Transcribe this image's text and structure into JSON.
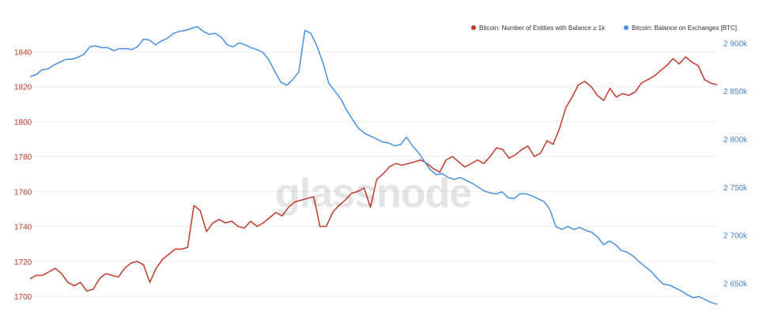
{
  "chart_data": {
    "type": "line",
    "watermark": "glassnode",
    "legend": [
      {
        "name": "Bitcoin: Number of Entities with Balance ≥ 1k",
        "color": "#c0392b"
      },
      {
        "name": "Bitcoin: Balance on Exchanges [BTC]",
        "color": "#4a90e2"
      }
    ],
    "legend_position": "top-right",
    "grid": true,
    "left_axis": {
      "ticks": [
        "1840",
        "1820",
        "1800",
        "1780",
        "1760",
        "1740",
        "1720",
        "1700"
      ],
      "tick_values": [
        1840,
        1820,
        1800,
        1780,
        1760,
        1740,
        1720,
        1700
      ],
      "range": [
        1691,
        1856
      ]
    },
    "right_axis": {
      "ticks": [
        "2 900k",
        "2 850k",
        "2 800k",
        "2 750k",
        "2 700k",
        "2 650k"
      ],
      "tick_values": [
        2900,
        2850,
        2800,
        2750,
        2700,
        2650
      ],
      "unit": "thousand BTC",
      "range": [
        2620,
        2920
      ]
    },
    "series": [
      {
        "name": "Bitcoin: Number of Entities with Balance ≥ 1k",
        "axis": "left",
        "color": "#c0392b",
        "values": [
          1710,
          1712,
          1712,
          1714,
          1716,
          1713,
          1708,
          1706,
          1708,
          1703,
          1704,
          1710,
          1713,
          1712,
          1711,
          1716,
          1719,
          1720,
          1718,
          1708,
          1716,
          1721,
          1724,
          1727,
          1727,
          1728,
          1752,
          1749,
          1737,
          1742,
          1744,
          1742,
          1743,
          1740,
          1739,
          1743,
          1740,
          1742,
          1745,
          1748,
          1746,
          1751,
          1754,
          1755,
          1756,
          1757,
          1740,
          1740,
          1748,
          1752,
          1755,
          1759,
          1760,
          1762,
          1751,
          1767,
          1770,
          1774,
          1776,
          1775,
          1776,
          1777,
          1778,
          1776,
          1773,
          1771,
          1778,
          1780,
          1777,
          1774,
          1776,
          1778,
          1776,
          1780,
          1785,
          1784,
          1779,
          1781,
          1784,
          1786,
          1780,
          1782,
          1789,
          1787,
          1796,
          1808,
          1814,
          1821,
          1823,
          1820,
          1815,
          1812,
          1819,
          1814,
          1816,
          1815,
          1817,
          1822,
          1824,
          1826,
          1829,
          1832,
          1836,
          1833,
          1837,
          1834,
          1832,
          1824,
          1822,
          1821
        ]
      },
      {
        "name": "Bitcoin: Balance on Exchanges [BTC]",
        "axis": "right",
        "color": "#4a90e2",
        "values": [
          2865,
          2867,
          2872,
          2873,
          2877,
          2880,
          2883,
          2883,
          2885,
          2888,
          2896,
          2897,
          2895,
          2895,
          2892,
          2894,
          2894,
          2893,
          2896,
          2904,
          2903,
          2898,
          2902,
          2905,
          2910,
          2912,
          2913,
          2915,
          2917,
          2912,
          2909,
          2910,
          2906,
          2898,
          2896,
          2900,
          2898,
          2895,
          2893,
          2890,
          2882,
          2870,
          2859,
          2856,
          2862,
          2870,
          2913,
          2910,
          2897,
          2880,
          2858,
          2850,
          2842,
          2830,
          2820,
          2811,
          2806,
          2803,
          2800,
          2797,
          2796,
          2793,
          2794,
          2802,
          2793,
          2786,
          2777,
          2768,
          2763,
          2764,
          2760,
          2758,
          2760,
          2757,
          2754,
          2750,
          2746,
          2744,
          2743,
          2745,
          2739,
          2738,
          2743,
          2743,
          2741,
          2738,
          2735,
          2727,
          2709,
          2706,
          2709,
          2706,
          2708,
          2705,
          2703,
          2698,
          2690,
          2694,
          2690,
          2684,
          2682,
          2678,
          2672,
          2667,
          2662,
          2655,
          2649,
          2648,
          2645,
          2642,
          2638,
          2635,
          2636,
          2633,
          2630,
          2628
        ]
      }
    ]
  }
}
